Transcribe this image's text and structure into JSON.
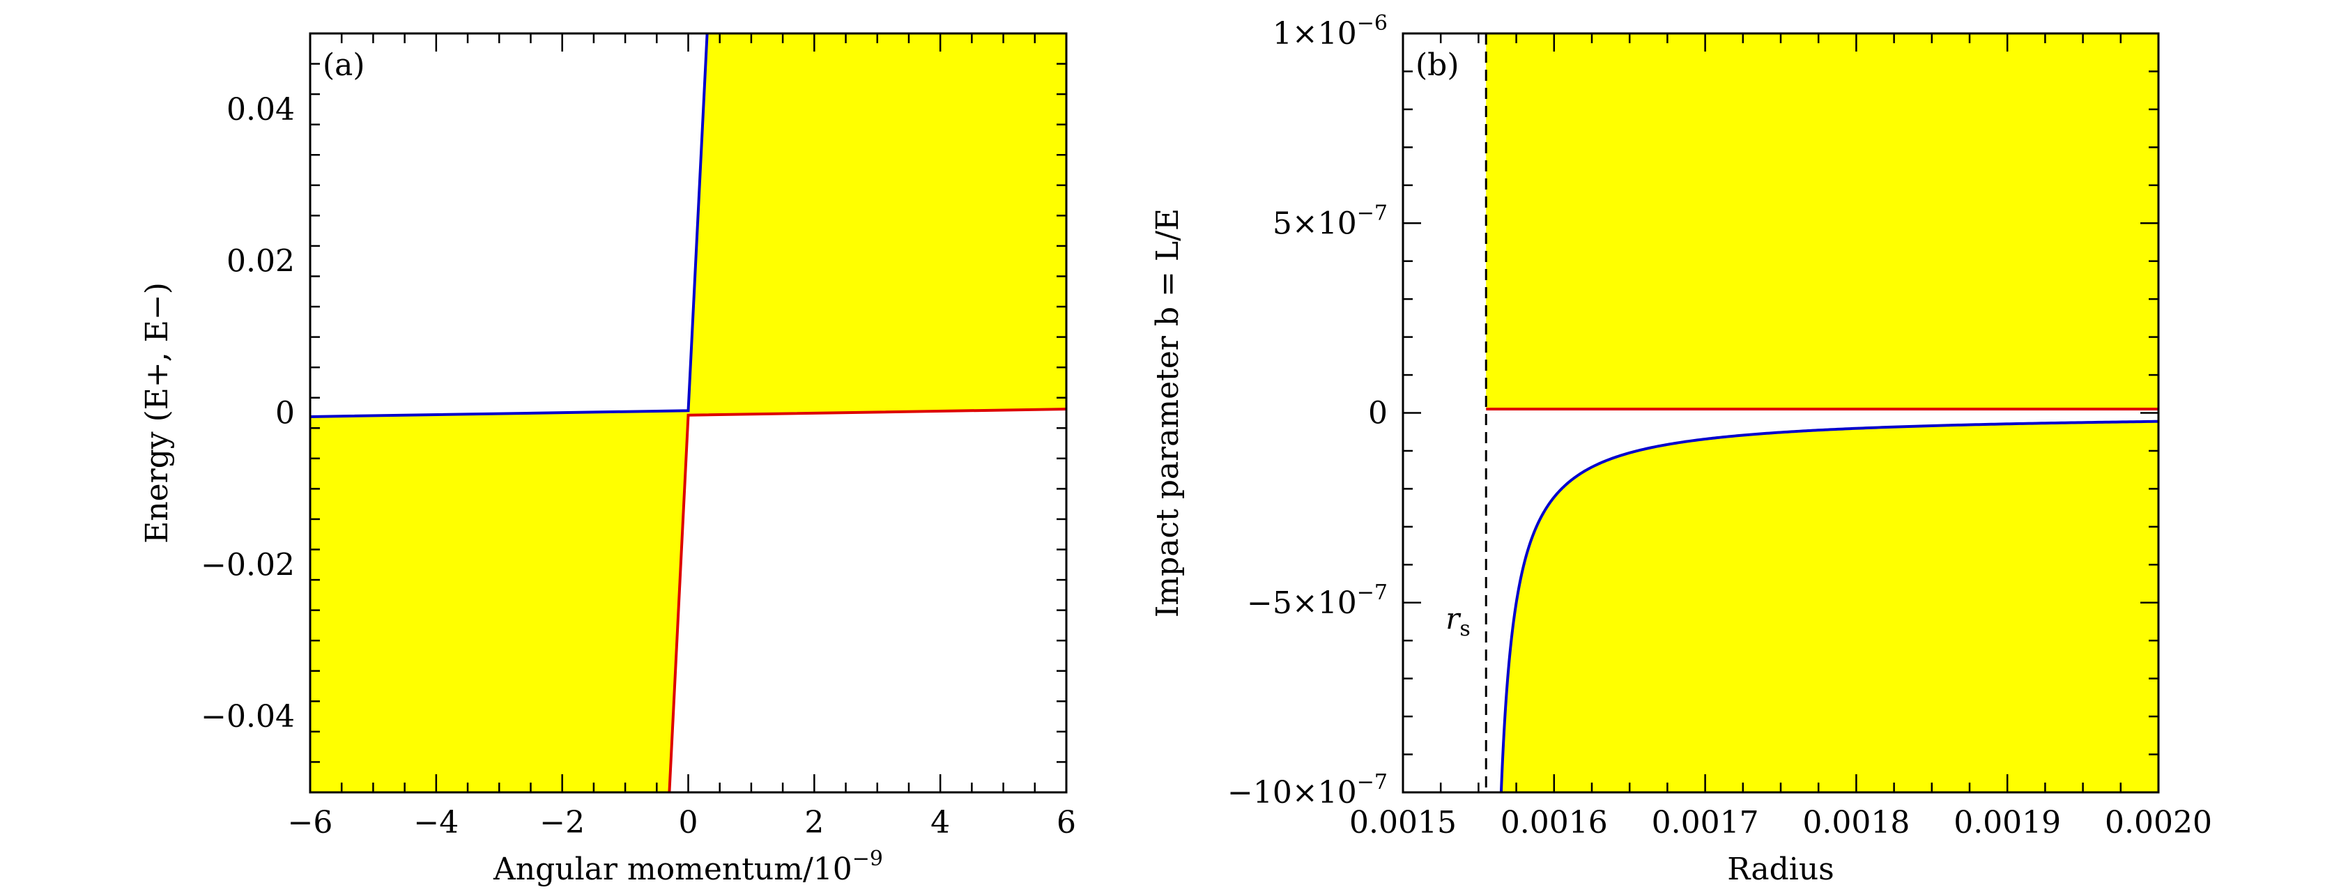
{
  "colors": {
    "forbidden_fill": "#ffff00",
    "blue_curve": "#0000cc",
    "red_curve": "#dd0000",
    "axes": "#000000"
  },
  "chart_data": [
    {
      "type": "area",
      "panel_label": "(a)",
      "xlabel": "Angular momentum/10",
      "xlabel_exponent": "−9",
      "ylabel": "Energy (E+, E−)",
      "xlim": [
        -6,
        6
      ],
      "ylim": [
        -0.05,
        0.05
      ],
      "x_ticks": [
        -6,
        -4,
        -2,
        0,
        2,
        4,
        6
      ],
      "x_tick_labels": [
        "−6",
        "−4",
        "−2",
        "0",
        "2",
        "4",
        "6"
      ],
      "y_ticks": [
        -0.04,
        -0.02,
        0,
        0.02,
        0.04
      ],
      "y_tick_labels": [
        "−0.04",
        "−0.02",
        "0",
        "0.02",
        "0.04"
      ],
      "grid": false,
      "series": [
        {
          "color": "blue",
          "x": [
            -6,
            0,
            0.3
          ],
          "y": [
            -0.0005,
            0.0003,
            0.05
          ]
        },
        {
          "color": "red",
          "x": [
            -0.3,
            0,
            6
          ],
          "y": [
            -0.05,
            -0.0003,
            0.0005
          ]
        }
      ],
      "shaded_regions": [
        {
          "x": [
            0,
            0.3,
            6,
            6,
            0
          ],
          "y": [
            0.0003,
            0.05,
            0.05,
            0.0005,
            -0.0003
          ]
        },
        {
          "x": [
            -6,
            -6,
            -0.3,
            0,
            -6
          ],
          "y": [
            -0.0005,
            -0.05,
            -0.05,
            0.0003,
            -0.0005
          ]
        }
      ]
    },
    {
      "type": "area",
      "panel_label": "(b)",
      "xlabel": "Radius",
      "ylabel": "Impact parameter b = L/E",
      "xlim": [
        0.0015,
        0.002
      ],
      "ylim": [
        -1e-06,
        1e-06
      ],
      "x_ticks": [
        0.0015,
        0.0016,
        0.0017,
        0.0018,
        0.0019,
        0.002
      ],
      "x_tick_labels": [
        "0.0015",
        "0.0016",
        "0.0017",
        "0.0018",
        "0.0019",
        "0.0020"
      ],
      "y_ticks": [
        -1e-06,
        -5e-07,
        0,
        5e-07,
        1e-06
      ],
      "y_tick_labels": [
        "−10×10",
        "−5×10",
        "0",
        "5×10",
        "1×10"
      ],
      "y_tick_exponents": [
        "−7",
        "−7",
        "",
        "−7",
        "−6"
      ],
      "grid": false,
      "rs": 0.001555,
      "rs_label": "r",
      "rs_label_sub": "s",
      "red_line_y": 1e-08,
      "blue_curve": {
        "color": "blue",
        "formula_note": "b = -k/(r - rs)",
        "k": 1e-11
      }
    }
  ]
}
